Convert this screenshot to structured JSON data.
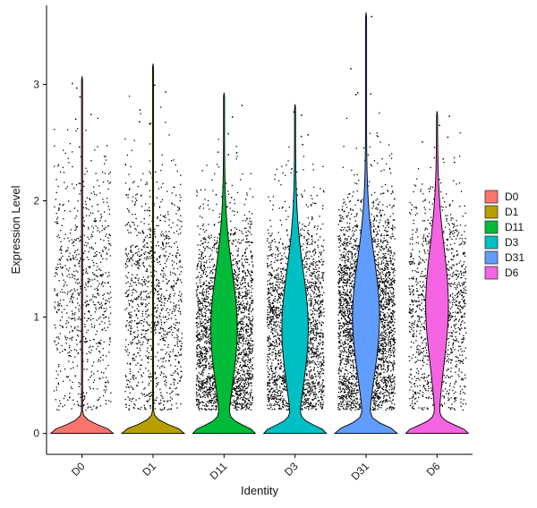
{
  "chart_data": {
    "type": "violin",
    "xlabel": "Identity",
    "ylabel": "Expression Level",
    "ylim": [
      -0.18,
      3.68
    ],
    "y_ticks": [
      0,
      1,
      2,
      3
    ],
    "x_tick_rotation_deg": 45,
    "grid": false,
    "legend_position": "right",
    "categories": [
      "D0",
      "D1",
      "D11",
      "D3",
      "D31",
      "D6"
    ],
    "series": [
      {
        "name": "D0",
        "color": "#F8766D",
        "max": 3.07,
        "mean_nonzero": 1.25,
        "sd": 0.55,
        "point_count": 800,
        "zero_fraction": 0.97
      },
      {
        "name": "D1",
        "color": "#B79F00",
        "max": 3.18,
        "mean_nonzero": 1.2,
        "sd": 0.55,
        "point_count": 1100,
        "zero_fraction": 0.97
      },
      {
        "name": "D11",
        "color": "#00BA38",
        "max": 2.93,
        "mean_nonzero": 0.9,
        "sd": 0.5,
        "point_count": 2600,
        "zero_fraction": 0.55
      },
      {
        "name": "D3",
        "color": "#00BFC4",
        "max": 2.83,
        "mean_nonzero": 0.9,
        "sd": 0.5,
        "point_count": 2300,
        "zero_fraction": 0.55
      },
      {
        "name": "D31",
        "color": "#619CFF",
        "max": 3.62,
        "mean_nonzero": 1.0,
        "sd": 0.5,
        "point_count": 3200,
        "zero_fraction": 0.55
      },
      {
        "name": "D6",
        "color": "#F564E3",
        "max": 2.77,
        "mean_nonzero": 1.1,
        "sd": 0.5,
        "point_count": 1300,
        "zero_fraction": 0.6
      }
    ]
  }
}
